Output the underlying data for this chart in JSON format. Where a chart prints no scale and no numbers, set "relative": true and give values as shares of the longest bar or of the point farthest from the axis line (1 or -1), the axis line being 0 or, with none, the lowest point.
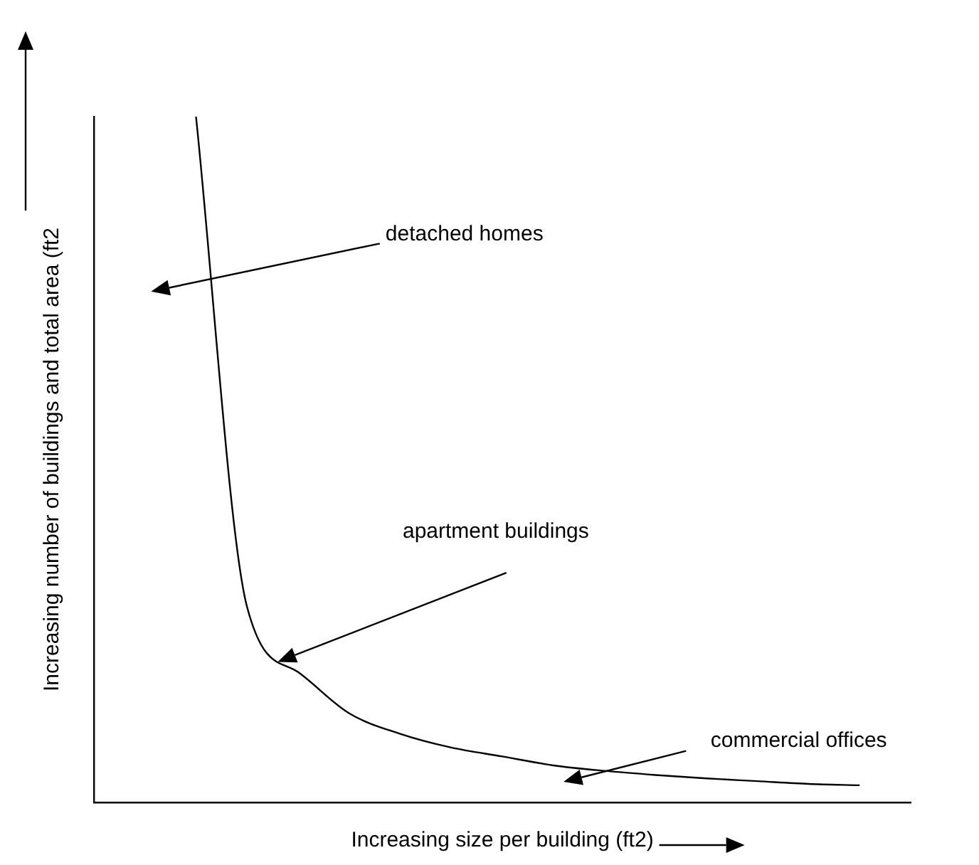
{
  "chart_data": {
    "type": "line",
    "relative": true,
    "xlabel": "Increasing size per building (ft2)",
    "ylabel": "Increasing number of buildings and total area (ft2",
    "categories": [
      null,
      null,
      null,
      null,
      null,
      null,
      null,
      null,
      null,
      null,
      null,
      null,
      null,
      null,
      null,
      null,
      null
    ],
    "series": [
      {
        "color": "#000000",
        "values": [
          null,
          null,
          1,
          0.285,
          0.19,
          0.13,
          0.1,
          0.08,
          0.067,
          0.054,
          0.046,
          0.04,
          0.035,
          0.031,
          0.027,
          0.025,
          null
        ]
      }
    ],
    "annotations": [
      "detached homes",
      "apartment buildings",
      "commercial offices"
    ],
    "grid": false,
    "legend": false,
    "marker": "none",
    "line_style": "solid",
    "tick_labels": false
  }
}
